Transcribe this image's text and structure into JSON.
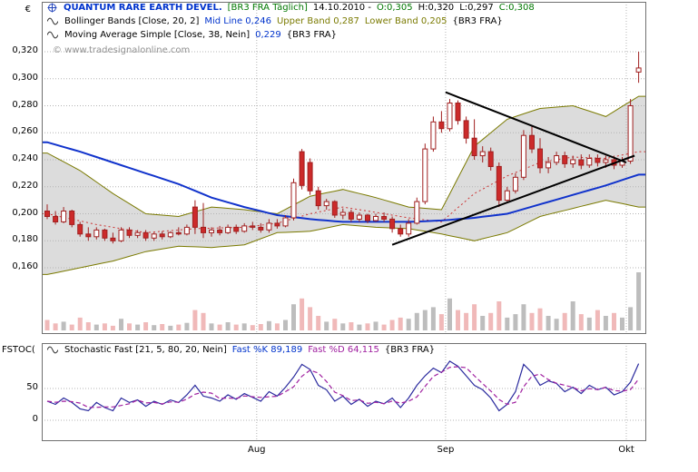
{
  "header": {
    "title": "QUANTUM RARE EARTH DEVEL.",
    "symbol": "[BR3 FRA Täglich]",
    "date": "14.10.2010 -",
    "o": "O:0,305",
    "h": "H:0,320",
    "l": "L:0,297",
    "c": "C:0,308"
  },
  "bollinger_legend": {
    "name": "Bollinger Bands [Close, 20, 2]",
    "mid": "Mid Line 0,246",
    "upper": "Upper Band 0,287",
    "lower": "Lower Band 0,205",
    "scope": "{BR3 FRA}"
  },
  "ma_legend": {
    "name": "Moving Average Simple [Close, 38, Nein]",
    "value": "0,229",
    "scope": "{BR3 FRA}"
  },
  "stochastic_legend": {
    "name": "Stochastic Fast [21, 5, 80, 20, Nein]",
    "k": "Fast %K 89,189",
    "d": "Fast %D 64,115",
    "scope": "{BR3 FRA}"
  },
  "watermark": "© www.tradesignalonline.com",
  "axes": {
    "currency": "€",
    "panel_label": "FSTOC("
  },
  "colors": {
    "candle_up_fill": "#ffffff",
    "candle_down_fill": "#cc2a2a",
    "candle_stroke": "#a02020",
    "band_fill": "#dcdcdc",
    "band_edge": "#7a7a00",
    "bb_mid": "#cc3333",
    "ma38": "#1133cc",
    "trendline": "#000000",
    "volume_up": "#bdbdbd",
    "volume_down": "#f0b9b9",
    "stoch_k": "#2a2a9e",
    "stoch_d": "#a020a0",
    "grid": "#b4b4b4",
    "frame": "#707070"
  },
  "chart_data": [
    {
      "type": "candlestick",
      "title": "QUANTUM RARE EARTH DEVEL. [BR3 FRA Täglich] daily with Bollinger Bands(20,2) and SMA(38)",
      "ylabel": "€",
      "ylim": [
        0.145,
        0.325
      ],
      "y_ticks": [
        {
          "label": "0,320",
          "value": 0.32
        },
        {
          "label": "0,300",
          "value": 0.3
        },
        {
          "label": "0,280",
          "value": 0.28
        },
        {
          "label": "0,260",
          "value": 0.26
        },
        {
          "label": "0,240",
          "value": 0.24
        },
        {
          "label": "0,220",
          "value": 0.22
        },
        {
          "label": "0,200",
          "value": 0.2
        },
        {
          "label": "0,180",
          "value": 0.18
        },
        {
          "label": "0,160",
          "value": 0.16
        }
      ],
      "months": [
        {
          "label": "Aug",
          "boundary_index": 25.5
        },
        {
          "label": "Sep",
          "boundary_index": 48.5
        },
        {
          "label": "Okt",
          "boundary_index": 70.5
        }
      ],
      "candles_ohlc": [
        [
          0.202,
          0.207,
          0.196,
          0.198
        ],
        [
          0.198,
          0.202,
          0.192,
          0.194
        ],
        [
          0.194,
          0.205,
          0.193,
          0.202
        ],
        [
          0.202,
          0.203,
          0.19,
          0.192
        ],
        [
          0.192,
          0.194,
          0.183,
          0.185
        ],
        [
          0.185,
          0.19,
          0.18,
          0.183
        ],
        [
          0.183,
          0.19,
          0.181,
          0.188
        ],
        [
          0.188,
          0.189,
          0.18,
          0.182
        ],
        [
          0.182,
          0.186,
          0.178,
          0.18
        ],
        [
          0.18,
          0.19,
          0.179,
          0.188
        ],
        [
          0.188,
          0.19,
          0.182,
          0.184
        ],
        [
          0.184,
          0.188,
          0.182,
          0.186
        ],
        [
          0.186,
          0.188,
          0.18,
          0.182
        ],
        [
          0.182,
          0.186,
          0.18,
          0.185
        ],
        [
          0.185,
          0.187,
          0.181,
          0.183
        ],
        [
          0.183,
          0.187,
          0.182,
          0.186
        ],
        [
          0.186,
          0.19,
          0.184,
          0.185
        ],
        [
          0.185,
          0.192,
          0.184,
          0.19
        ],
        [
          0.205,
          0.21,
          0.185,
          0.19
        ],
        [
          0.19,
          0.208,
          0.182,
          0.186
        ],
        [
          0.186,
          0.19,
          0.183,
          0.188
        ],
        [
          0.188,
          0.191,
          0.184,
          0.186
        ],
        [
          0.186,
          0.192,
          0.185,
          0.19
        ],
        [
          0.19,
          0.192,
          0.185,
          0.187
        ],
        [
          0.187,
          0.193,
          0.186,
          0.191
        ],
        [
          0.191,
          0.194,
          0.188,
          0.19
        ],
        [
          0.19,
          0.193,
          0.186,
          0.188
        ],
        [
          0.188,
          0.196,
          0.186,
          0.193
        ],
        [
          0.193,
          0.196,
          0.189,
          0.191
        ],
        [
          0.191,
          0.199,
          0.19,
          0.197
        ],
        [
          0.197,
          0.226,
          0.195,
          0.223
        ],
        [
          0.246,
          0.248,
          0.218,
          0.221
        ],
        [
          0.238,
          0.241,
          0.214,
          0.217
        ],
        [
          0.217,
          0.22,
          0.203,
          0.206
        ],
        [
          0.206,
          0.211,
          0.203,
          0.209
        ],
        [
          0.209,
          0.21,
          0.197,
          0.199
        ],
        [
          0.199,
          0.204,
          0.196,
          0.201
        ],
        [
          0.201,
          0.203,
          0.194,
          0.196
        ],
        [
          0.196,
          0.201,
          0.194,
          0.199
        ],
        [
          0.199,
          0.2,
          0.193,
          0.195
        ],
        [
          0.195,
          0.2,
          0.194,
          0.198
        ],
        [
          0.198,
          0.201,
          0.194,
          0.196
        ],
        [
          0.196,
          0.198,
          0.186,
          0.189
        ],
        [
          0.189,
          0.192,
          0.183,
          0.185
        ],
        [
          0.185,
          0.196,
          0.183,
          0.193
        ],
        [
          0.193,
          0.212,
          0.192,
          0.209
        ],
        [
          0.209,
          0.252,
          0.207,
          0.248
        ],
        [
          0.248,
          0.272,
          0.246,
          0.268
        ],
        [
          0.268,
          0.276,
          0.26,
          0.263
        ],
        [
          0.263,
          0.285,
          0.261,
          0.282
        ],
        [
          0.282,
          0.284,
          0.266,
          0.269
        ],
        [
          0.269,
          0.272,
          0.252,
          0.256
        ],
        [
          0.256,
          0.27,
          0.24,
          0.243
        ],
        [
          0.243,
          0.25,
          0.238,
          0.246
        ],
        [
          0.246,
          0.249,
          0.232,
          0.235
        ],
        [
          0.235,
          0.238,
          0.205,
          0.21
        ],
        [
          0.21,
          0.22,
          0.208,
          0.217
        ],
        [
          0.217,
          0.23,
          0.215,
          0.227
        ],
        [
          0.227,
          0.262,
          0.225,
          0.258
        ],
        [
          0.258,
          0.265,
          0.245,
          0.248
        ],
        [
          0.248,
          0.256,
          0.23,
          0.234
        ],
        [
          0.234,
          0.242,
          0.23,
          0.238
        ],
        [
          0.238,
          0.246,
          0.236,
          0.243
        ],
        [
          0.243,
          0.246,
          0.234,
          0.237
        ],
        [
          0.237,
          0.243,
          0.234,
          0.24
        ],
        [
          0.24,
          0.244,
          0.233,
          0.236
        ],
        [
          0.236,
          0.244,
          0.234,
          0.241
        ],
        [
          0.241,
          0.244,
          0.235,
          0.238
        ],
        [
          0.238,
          0.243,
          0.234,
          0.24
        ],
        [
          0.24,
          0.243,
          0.233,
          0.236
        ],
        [
          0.236,
          0.242,
          0.234,
          0.239
        ],
        [
          0.239,
          0.285,
          0.237,
          0.28
        ],
        [
          0.305,
          0.32,
          0.297,
          0.308
        ]
      ],
      "volume_relative": [
        0.18,
        0.12,
        0.15,
        0.1,
        0.22,
        0.14,
        0.1,
        0.12,
        0.08,
        0.2,
        0.12,
        0.1,
        0.14,
        0.09,
        0.11,
        0.08,
        0.1,
        0.13,
        0.35,
        0.3,
        0.12,
        0.1,
        0.14,
        0.1,
        0.12,
        0.09,
        0.11,
        0.16,
        0.12,
        0.18,
        0.45,
        0.55,
        0.4,
        0.25,
        0.15,
        0.2,
        0.12,
        0.14,
        0.1,
        0.12,
        0.15,
        0.1,
        0.18,
        0.22,
        0.2,
        0.3,
        0.35,
        0.4,
        0.28,
        0.55,
        0.35,
        0.3,
        0.45,
        0.25,
        0.3,
        0.5,
        0.22,
        0.28,
        0.45,
        0.3,
        0.38,
        0.25,
        0.2,
        0.3,
        0.5,
        0.28,
        0.22,
        0.35,
        0.25,
        0.3,
        0.22,
        0.4,
        1.0
      ],
      "overlays": {
        "ma38_points": [
          [
            0,
            0.253
          ],
          [
            4,
            0.246
          ],
          [
            8,
            0.238
          ],
          [
            12,
            0.23
          ],
          [
            16,
            0.222
          ],
          [
            20,
            0.212
          ],
          [
            24,
            0.205
          ],
          [
            28,
            0.199
          ],
          [
            32,
            0.196
          ],
          [
            36,
            0.194
          ],
          [
            40,
            0.194
          ],
          [
            44,
            0.194
          ],
          [
            48,
            0.195
          ],
          [
            52,
            0.197
          ],
          [
            56,
            0.2
          ],
          [
            60,
            0.207
          ],
          [
            64,
            0.214
          ],
          [
            68,
            0.221
          ],
          [
            72,
            0.229
          ]
        ],
        "bb_mid_points": [
          [
            0,
            0.2
          ],
          [
            6,
            0.192
          ],
          [
            12,
            0.186
          ],
          [
            18,
            0.189
          ],
          [
            24,
            0.19
          ],
          [
            28,
            0.193
          ],
          [
            32,
            0.2
          ],
          [
            36,
            0.205
          ],
          [
            40,
            0.201
          ],
          [
            44,
            0.197
          ],
          [
            48,
            0.194
          ],
          [
            52,
            0.215
          ],
          [
            56,
            0.228
          ],
          [
            60,
            0.238
          ],
          [
            64,
            0.242
          ],
          [
            68,
            0.241
          ],
          [
            72,
            0.246
          ]
        ],
        "bb_upper_points": [
          [
            0,
            0.245
          ],
          [
            4,
            0.232
          ],
          [
            8,
            0.215
          ],
          [
            12,
            0.2
          ],
          [
            16,
            0.198
          ],
          [
            20,
            0.205
          ],
          [
            24,
            0.203
          ],
          [
            28,
            0.2
          ],
          [
            32,
            0.213
          ],
          [
            36,
            0.218
          ],
          [
            40,
            0.212
          ],
          [
            44,
            0.205
          ],
          [
            48,
            0.203
          ],
          [
            52,
            0.25
          ],
          [
            56,
            0.27
          ],
          [
            60,
            0.278
          ],
          [
            64,
            0.28
          ],
          [
            68,
            0.272
          ],
          [
            72,
            0.287
          ]
        ],
        "bb_lower_points": [
          [
            0,
            0.155
          ],
          [
            4,
            0.16
          ],
          [
            8,
            0.165
          ],
          [
            12,
            0.172
          ],
          [
            16,
            0.176
          ],
          [
            20,
            0.175
          ],
          [
            24,
            0.177
          ],
          [
            28,
            0.186
          ],
          [
            32,
            0.187
          ],
          [
            36,
            0.192
          ],
          [
            40,
            0.19
          ],
          [
            44,
            0.189
          ],
          [
            48,
            0.185
          ],
          [
            52,
            0.18
          ],
          [
            56,
            0.186
          ],
          [
            60,
            0.198
          ],
          [
            64,
            0.204
          ],
          [
            68,
            0.21
          ],
          [
            72,
            0.205
          ]
        ],
        "trendlines": [
          {
            "from_index": 48.5,
            "from_price": 0.29,
            "to_index": 70.5,
            "to_price": 0.238
          },
          {
            "from_index": 42.0,
            "from_price": 0.177,
            "to_index": 71.5,
            "to_price": 0.243
          }
        ]
      }
    },
    {
      "type": "line",
      "title": "Stochastic Fast [21, 5, 80, 20, Nein]",
      "ylim": [
        0,
        100
      ],
      "y_ticks": [
        {
          "label": "50",
          "value": 50
        },
        {
          "label": "0",
          "value": 0
        }
      ],
      "series": [
        {
          "name": "Fast %K",
          "color": "#2a2a9e",
          "last_value": 89.189,
          "values": [
            30,
            25,
            35,
            28,
            18,
            15,
            28,
            20,
            15,
            35,
            28,
            32,
            22,
            30,
            25,
            32,
            28,
            40,
            55,
            38,
            35,
            30,
            40,
            33,
            42,
            36,
            30,
            45,
            38,
            52,
            68,
            88,
            80,
            55,
            48,
            30,
            38,
            25,
            33,
            22,
            30,
            26,
            35,
            20,
            35,
            55,
            70,
            82,
            75,
            93,
            85,
            70,
            55,
            48,
            35,
            15,
            25,
            45,
            88,
            75,
            55,
            62,
            58,
            45,
            52,
            42,
            55,
            48,
            52,
            40,
            45,
            60,
            89.2
          ]
        },
        {
          "name": "Fast %D",
          "color": "#a020a0",
          "last_value": 64.115,
          "derived": "3-period SMA of Fast %K"
        }
      ]
    }
  ]
}
